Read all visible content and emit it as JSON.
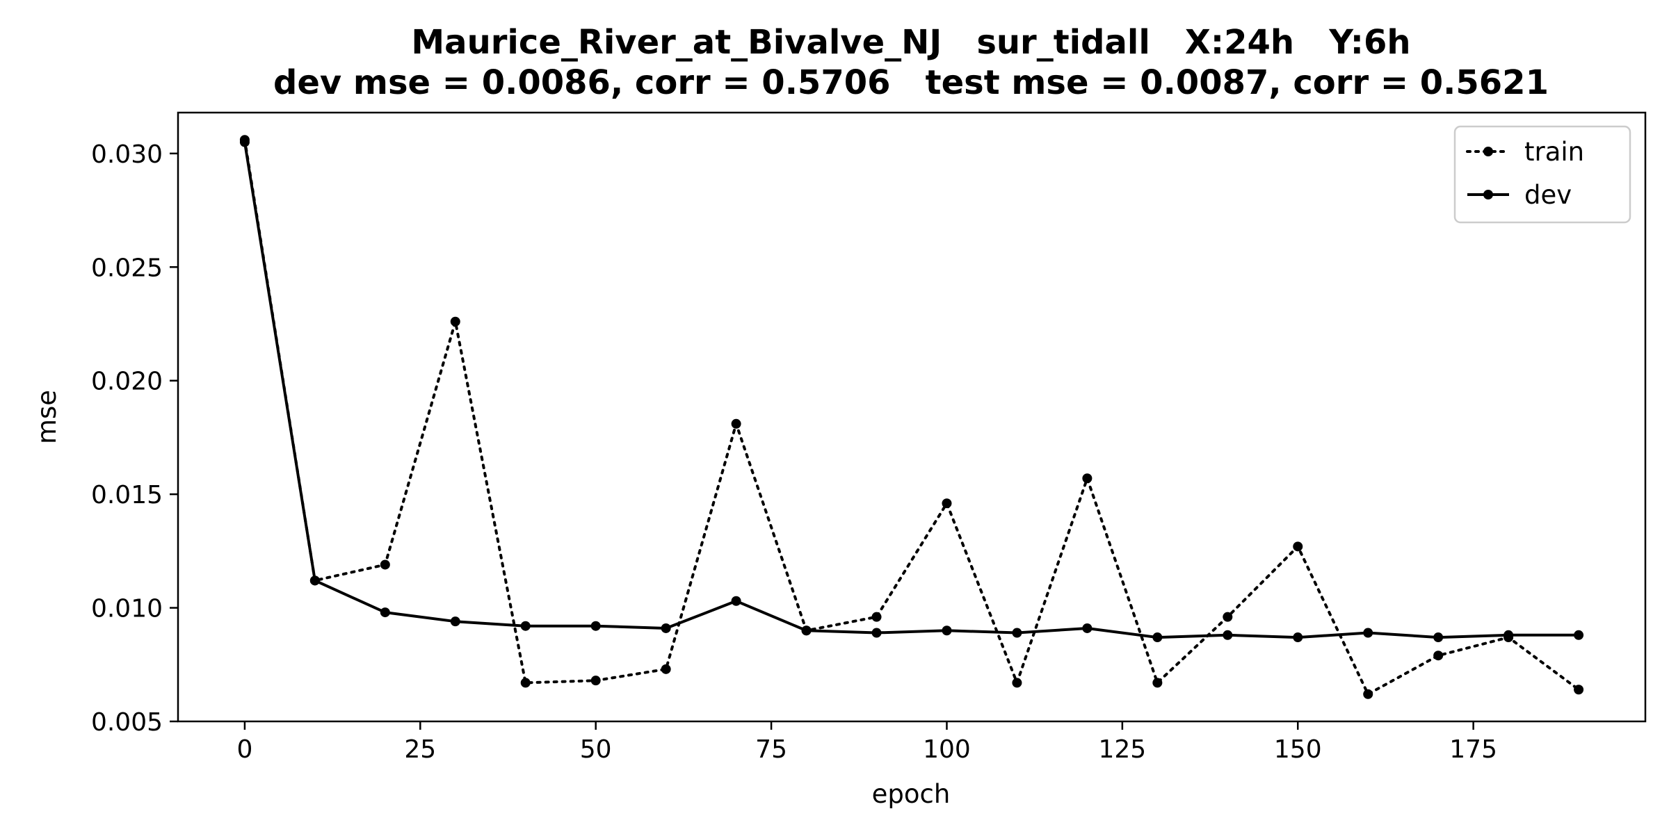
{
  "chart_data": {
    "type": "line",
    "title": "Maurice_River_at_Bivalve_NJ   sur_tidall   X:24h   Y:6h",
    "subtitle": "dev mse = 0.0086, corr = 0.5706   test mse = 0.0087, corr = 0.5621",
    "xlabel": "epoch",
    "ylabel": "mse",
    "xlim": [
      -9.5,
      199.5
    ],
    "ylim": [
      0.005,
      0.0318
    ],
    "xticks": [
      0,
      25,
      50,
      75,
      100,
      125,
      150,
      175
    ],
    "xtick_labels": [
      "0",
      "25",
      "50",
      "75",
      "100",
      "125",
      "150",
      "175"
    ],
    "yticks": [
      0.005,
      0.01,
      0.015,
      0.02,
      0.025,
      0.03
    ],
    "ytick_labels": [
      "0.005",
      "0.010",
      "0.015",
      "0.020",
      "0.025",
      "0.030"
    ],
    "grid": false,
    "legend_position": "top-right",
    "x": [
      0,
      10,
      20,
      30,
      40,
      50,
      60,
      70,
      80,
      90,
      100,
      110,
      120,
      130,
      140,
      150,
      160,
      170,
      180,
      190
    ],
    "series": [
      {
        "name": "train",
        "style": "dotted",
        "marker": "dot",
        "color": "#000000",
        "values": [
          0.0306,
          0.0112,
          0.0119,
          0.0226,
          0.0067,
          0.0068,
          0.0073,
          0.0181,
          0.009,
          0.0096,
          0.0146,
          0.0067,
          0.0157,
          0.0067,
          0.0096,
          0.0127,
          0.0062,
          0.0079,
          0.0087,
          0.0064
        ]
      },
      {
        "name": "dev",
        "style": "solid",
        "marker": "dot",
        "color": "#000000",
        "values": [
          0.0305,
          0.0112,
          0.0098,
          0.0094,
          0.0092,
          0.0092,
          0.0091,
          0.0103,
          0.009,
          0.0089,
          0.009,
          0.0089,
          0.0091,
          0.0087,
          0.0088,
          0.0087,
          0.0089,
          0.0087,
          0.0088,
          0.0088
        ]
      }
    ]
  }
}
